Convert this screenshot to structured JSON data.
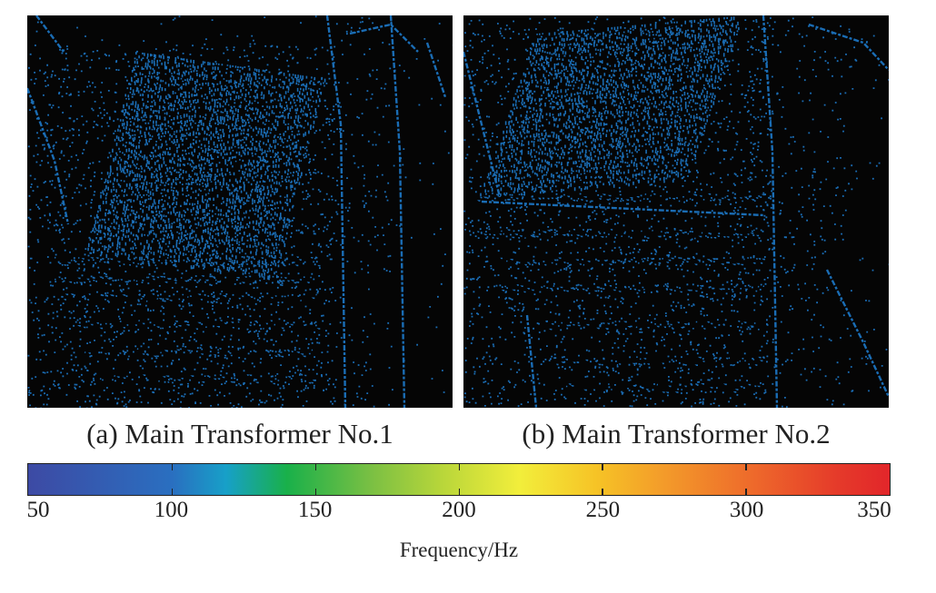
{
  "panels": [
    {
      "caption": "(a) Main Transformer No.1"
    },
    {
      "caption": "(b) Main Transformer No.2"
    }
  ],
  "colorbar": {
    "title": "Frequency/Hz",
    "min": 50,
    "max": 350,
    "ticks": [
      "50",
      "100",
      "150",
      "200",
      "250",
      "300",
      "350"
    ],
    "colors": [
      "#3d4aa4",
      "#2a6fc0",
      "#19b04a",
      "#7cc043",
      "#f2ee3b",
      "#f39a2a",
      "#e2262a"
    ]
  },
  "point_color": "#1a6db5"
}
